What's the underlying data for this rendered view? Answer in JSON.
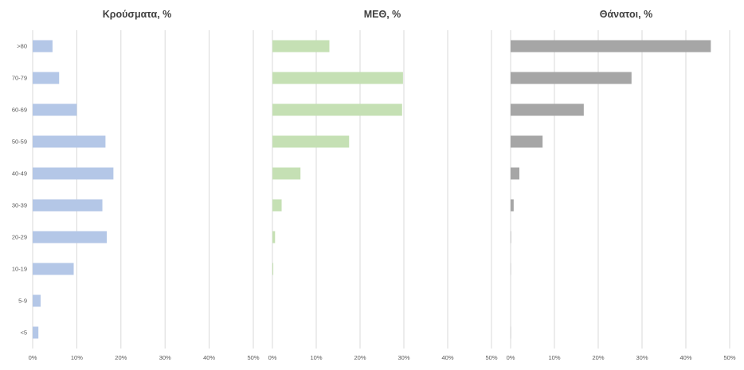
{
  "chart_data": {
    "type": "bar",
    "orientation": "horizontal",
    "categories": [
      ">80",
      "70-79",
      "60-69",
      "50-59",
      "40-49",
      "30-39",
      "20-29",
      "10-19",
      "5-9",
      "<5"
    ],
    "xlim": [
      0,
      50
    ],
    "x_ticks": [
      "0%",
      "10%",
      "20%",
      "30%",
      "40%",
      "50%"
    ],
    "grid": "vertical",
    "legend": "none",
    "panels": [
      {
        "title": "Κρούσματα, %",
        "color": "#b4c7e7",
        "values": [
          4.5,
          6.0,
          10.0,
          16.5,
          18.3,
          15.8,
          16.8,
          9.3,
          1.8,
          1.3
        ]
      },
      {
        "title": "ΜΕΘ, %",
        "color": "#c5e0b4",
        "values": [
          13.0,
          29.8,
          29.6,
          17.5,
          6.4,
          2.1,
          0.6,
          0.2,
          0.0,
          0.0
        ]
      },
      {
        "title": "Θάνατοι, %",
        "color": "#a6a6a6",
        "values": [
          45.7,
          27.6,
          16.7,
          7.3,
          2.0,
          0.7,
          0.1,
          0.05,
          0.0,
          0.05
        ]
      }
    ]
  }
}
